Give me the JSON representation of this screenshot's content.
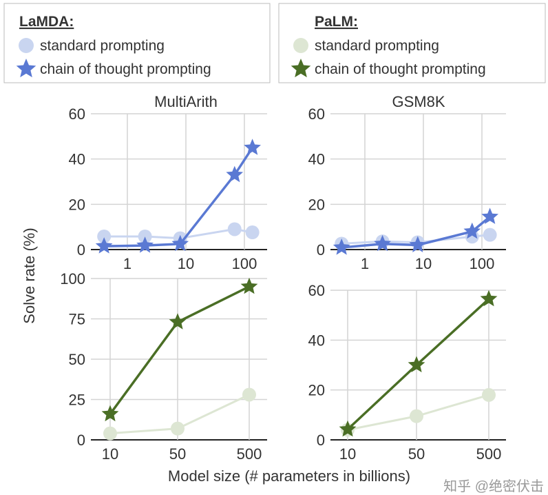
{
  "legends": [
    {
      "title": "LaMDA:",
      "standard": "standard prompting",
      "cot": "chain of thought prompting",
      "color_std": "#c9d5f0",
      "color_cot": "#5a79d3"
    },
    {
      "title": "PaLM:",
      "standard": "standard prompting",
      "cot": "chain of thought prompting",
      "color_std": "#dde6d3",
      "color_cot": "#4a6e25"
    }
  ],
  "ylabel": "Solve rate (%)",
  "xlabel": "Model size (# parameters in billions)",
  "watermark": "知乎 @绝密伏击",
  "chart_data": [
    {
      "type": "line",
      "title": "MultiArith",
      "model": "LaMDA",
      "xscale": "log",
      "x": [
        0.4,
        2,
        8,
        68,
        137
      ],
      "xticks": [
        1,
        10,
        100
      ],
      "ylim": [
        0,
        60
      ],
      "yticks": [
        0,
        20,
        40,
        60
      ],
      "series": [
        {
          "name": "standard prompting",
          "values": [
            5.8,
            5.8,
            5.0,
            9.0,
            7.6
          ]
        },
        {
          "name": "chain of thought prompting",
          "values": [
            1.5,
            1.8,
            2.5,
            33,
            45
          ]
        }
      ]
    },
    {
      "type": "line",
      "title": "GSM8K",
      "model": "LaMDA",
      "xscale": "log",
      "x": [
        0.4,
        2,
        8,
        68,
        137
      ],
      "xticks": [
        1,
        10,
        100
      ],
      "ylim": [
        0,
        60
      ],
      "yticks": [
        0,
        20,
        40,
        60
      ],
      "series": [
        {
          "name": "standard prompting",
          "values": [
            2.6,
            3.6,
            3.2,
            5.7,
            6.5
          ]
        },
        {
          "name": "chain of thought prompting",
          "values": [
            0.9,
            2.5,
            2.0,
            8.0,
            14.5
          ]
        }
      ]
    },
    {
      "type": "line",
      "title": "",
      "model": "PaLM",
      "xscale": "category",
      "categories": [
        "10",
        "50",
        "500"
      ],
      "ylim": [
        0,
        100
      ],
      "yticks": [
        0,
        25,
        50,
        75,
        100
      ],
      "series": [
        {
          "name": "standard prompting",
          "values": [
            4,
            7,
            28
          ]
        },
        {
          "name": "chain of thought prompting",
          "values": [
            16,
            73,
            95
          ]
        }
      ]
    },
    {
      "type": "line",
      "title": "",
      "model": "PaLM",
      "xscale": "category",
      "categories": [
        "10",
        "50",
        "500"
      ],
      "ylim": [
        0,
        60
      ],
      "yticks": [
        0,
        20,
        40,
        60
      ],
      "series": [
        {
          "name": "standard prompting",
          "values": [
            4,
            9.5,
            18
          ]
        },
        {
          "name": "chain of thought prompting",
          "values": [
            4.2,
            30,
            56.5
          ]
        }
      ]
    }
  ]
}
